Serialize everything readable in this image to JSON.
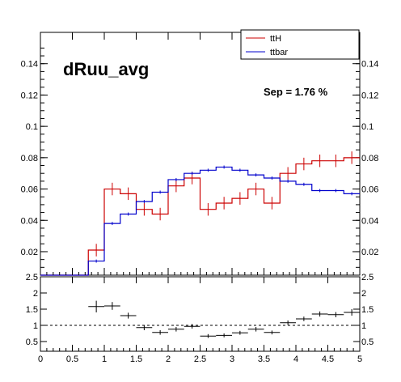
{
  "colors": {
    "signal": "#cc0000",
    "background": "#0000cc",
    "axis": "#000000"
  },
  "chart_data": [
    {
      "type": "line",
      "variant": "step-histogram",
      "annotation": "dRuu_avg",
      "separation": "Sep = 1.76 %",
      "legend": {
        "placement": "top-right",
        "entries": [
          "ttH",
          "ttbar"
        ]
      },
      "xlim": [
        0,
        5
      ],
      "ylim": [
        0.005,
        0.16
      ],
      "bin_width": 0.25,
      "yticks": [
        0.02,
        0.04,
        0.06,
        0.08,
        0.1,
        0.12,
        0.14
      ],
      "ytick_labels": [
        "0.02",
        "0.04",
        "0.06",
        "0.08",
        "0.1",
        "0.12",
        "0.14"
      ],
      "bin_edges": [
        0,
        0.25,
        0.5,
        0.75,
        1.0,
        1.25,
        1.5,
        1.75,
        2.0,
        2.25,
        2.5,
        2.75,
        3.0,
        3.25,
        3.5,
        3.75,
        4.0,
        4.25,
        4.5,
        4.75,
        5.0
      ],
      "series": [
        {
          "name": "ttH",
          "values": [
            0,
            0,
            0,
            0.021,
            0.06,
            0.057,
            0.047,
            0.044,
            0.062,
            0.067,
            0.047,
            0.051,
            0.054,
            0.06,
            0.051,
            0.07,
            0.076,
            0.078,
            0.078,
            0.08
          ],
          "errors": [
            0,
            0,
            0,
            0.004,
            0.004,
            0.004,
            0.004,
            0.004,
            0.004,
            0.004,
            0.004,
            0.004,
            0.004,
            0.004,
            0.004,
            0.004,
            0.004,
            0.004,
            0.004,
            0.004
          ]
        },
        {
          "name": "ttbar",
          "values": [
            0,
            0,
            0,
            0.014,
            0.038,
            0.044,
            0.052,
            0.058,
            0.066,
            0.07,
            0.072,
            0.074,
            0.072,
            0.069,
            0.067,
            0.065,
            0.063,
            0.059,
            0.059,
            0.057
          ],
          "errors": [
            0,
            0,
            0,
            0.001,
            0.001,
            0.001,
            0.001,
            0.001,
            0.001,
            0.001,
            0.001,
            0.001,
            0.001,
            0.001,
            0.001,
            0.001,
            0.001,
            0.001,
            0.001,
            0.001
          ]
        }
      ]
    },
    {
      "type": "scatter",
      "variant": "ratio-panel",
      "xlim": [
        0,
        5
      ],
      "ylim": [
        0.2,
        2.5
      ],
      "reference_line": 1,
      "xticks": [
        0,
        0.5,
        1,
        1.5,
        2,
        2.5,
        3,
        3.5,
        4,
        4.5,
        5
      ],
      "xtick_labels": [
        "0",
        "0.5",
        "1",
        "1.5",
        "2",
        "2.5",
        "3",
        "3.5",
        "4",
        "4.5",
        "5"
      ],
      "yticks": [
        0.5,
        1,
        1.5,
        2,
        2.5
      ],
      "ytick_labels": [
        "0.5",
        "1",
        "1.5",
        "2",
        "2.5"
      ],
      "x": [
        0.875,
        1.125,
        1.375,
        1.625,
        1.875,
        2.125,
        2.375,
        2.625,
        2.875,
        3.125,
        3.375,
        3.625,
        3.875,
        4.125,
        4.375,
        4.625,
        4.875
      ],
      "y": [
        1.58,
        1.6,
        1.3,
        0.93,
        0.78,
        0.88,
        0.97,
        0.67,
        0.69,
        0.77,
        0.88,
        0.78,
        1.08,
        1.2,
        1.35,
        1.33,
        1.4
      ],
      "yerr": [
        0.18,
        0.12,
        0.09,
        0.08,
        0.07,
        0.07,
        0.07,
        0.06,
        0.06,
        0.06,
        0.07,
        0.06,
        0.07,
        0.07,
        0.08,
        0.08,
        0.1
      ]
    }
  ]
}
